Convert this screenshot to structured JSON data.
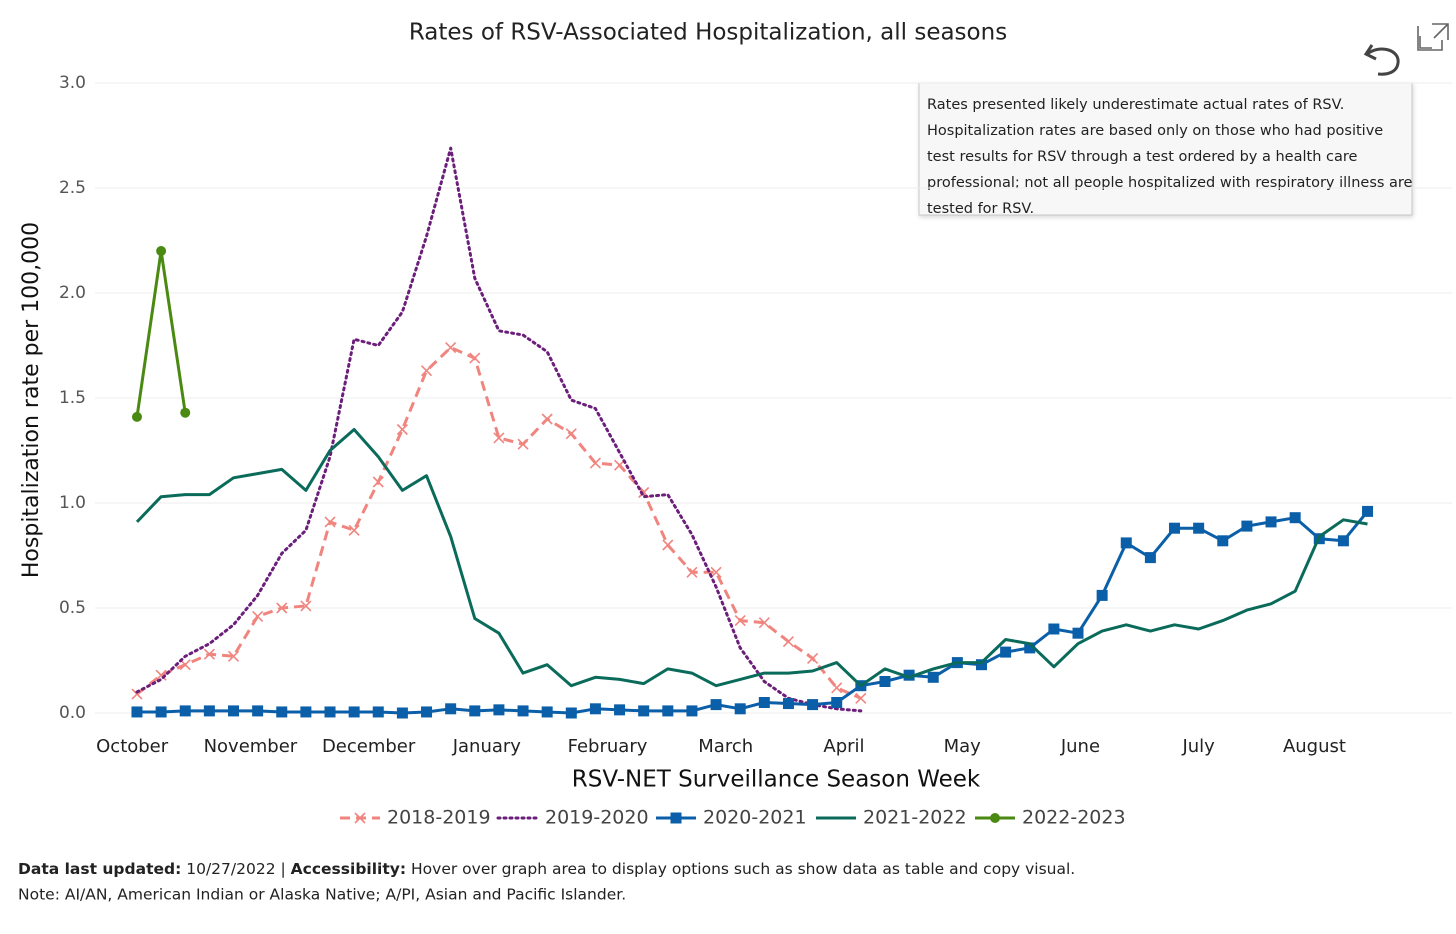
{
  "chart_data": {
    "type": "line",
    "title": "Rates of RSV-Associated Hospitalization, all seasons",
    "y_label": "Hospitalization rate per 100,000",
    "x_label": "RSV-NET Surveillance Season Week",
    "note_lines": [
      "Rates presented likely underestimate actual rates of RSV.",
      "Hospitalization rates are based only on those who had positive",
      "test results for RSV through a test ordered by a health care",
      "professional; not all people hospitalized with respiratory illness are",
      "tested for RSV."
    ],
    "x": [
      0,
      1,
      2,
      3,
      4,
      5,
      6,
      7,
      8,
      9,
      10,
      11,
      12,
      13,
      14,
      15,
      16,
      17,
      18,
      19,
      20,
      21,
      22,
      23,
      24,
      25,
      26,
      27,
      28,
      29,
      30,
      31,
      32,
      33,
      34,
      35,
      36,
      37,
      38,
      39,
      40,
      41,
      42,
      43,
      44,
      45,
      46,
      47,
      48,
      49,
      50,
      51
    ],
    "xlim": [
      -1.74,
      54.5
    ],
    "xticks": [
      {
        "value": -0.2,
        "label": "October"
      },
      {
        "value": 4.7,
        "label": "November"
      },
      {
        "value": 9.6,
        "label": "December"
      },
      {
        "value": 14.5,
        "label": "January"
      },
      {
        "value": 19.5,
        "label": "February"
      },
      {
        "value": 24.4,
        "label": "March"
      },
      {
        "value": 29.3,
        "label": "April"
      },
      {
        "value": 34.2,
        "label": "May"
      },
      {
        "value": 39.1,
        "label": "June"
      },
      {
        "value": 44.0,
        "label": "July"
      },
      {
        "value": 48.8,
        "label": "August"
      }
    ],
    "ylim": [
      0,
      3
    ],
    "yticks": [
      {
        "value": 0,
        "label": "0.0"
      },
      0.5,
      {
        "value": 1,
        "label": "1.0"
      },
      1.5,
      {
        "value": 2,
        "label": "2.0"
      },
      2.5,
      {
        "value": 3,
        "label": "3.0"
      }
    ],
    "grid": true,
    "legend": "bottom",
    "series": [
      {
        "name": "2018-2019",
        "color": "#f0857f",
        "dash": "dashed",
        "marker": "x",
        "values": [
          0.09,
          0.18,
          0.23,
          0.28,
          0.27,
          0.46,
          0.5,
          0.51,
          0.91,
          0.87,
          1.1,
          1.35,
          1.63,
          1.74,
          1.69,
          1.31,
          1.28,
          1.4,
          1.33,
          1.19,
          1.18,
          1.05,
          0.8,
          0.67,
          0.67,
          0.44,
          0.43,
          0.34,
          0.26,
          0.12,
          0.07,
          null,
          null,
          null,
          null,
          null,
          null,
          null,
          null,
          null,
          null,
          null,
          null,
          null,
          null,
          null,
          null,
          null,
          null,
          null,
          null,
          null
        ]
      },
      {
        "name": "2019-2020",
        "color": "#6b1f7b",
        "dash": "dotted",
        "marker": "none",
        "values": [
          0.1,
          0.16,
          0.27,
          0.33,
          0.42,
          0.56,
          0.76,
          0.87,
          1.22,
          1.78,
          1.75,
          1.91,
          2.27,
          2.69,
          2.07,
          1.82,
          1.8,
          1.72,
          1.49,
          1.45,
          1.24,
          1.03,
          1.04,
          0.85,
          0.6,
          0.31,
          0.15,
          0.07,
          0.04,
          0.02,
          0.01,
          null,
          null,
          null,
          null,
          null,
          null,
          null,
          null,
          null,
          null,
          null,
          null,
          null,
          null,
          null,
          null,
          null,
          null,
          null,
          null,
          null
        ]
      },
      {
        "name": "2020-2021",
        "color": "#0b5fa8",
        "dash": "solid",
        "marker": "square",
        "values": [
          0.005,
          0.005,
          0.01,
          0.01,
          0.01,
          0.01,
          0.005,
          0.005,
          0.005,
          0.005,
          0.005,
          0.0,
          0.005,
          0.02,
          0.01,
          0.015,
          0.01,
          0.005,
          0.0,
          0.02,
          0.015,
          0.01,
          0.01,
          0.01,
          0.04,
          0.02,
          0.05,
          0.045,
          0.04,
          0.05,
          0.13,
          0.15,
          0.18,
          0.17,
          0.24,
          0.23,
          0.29,
          0.31,
          0.4,
          0.38,
          0.56,
          0.81,
          0.74,
          0.88,
          0.88,
          0.82,
          0.89,
          0.91,
          0.93,
          0.83,
          0.82,
          0.96
        ]
      },
      {
        "name": "2021-2022",
        "color": "#0b6b5b",
        "dash": "solid",
        "marker": "none",
        "values": [
          0.91,
          1.03,
          1.04,
          1.04,
          1.12,
          1.14,
          1.16,
          1.06,
          1.25,
          1.35,
          1.22,
          1.06,
          1.13,
          0.84,
          0.45,
          0.38,
          0.19,
          0.23,
          0.13,
          0.17,
          0.16,
          0.14,
          0.21,
          0.19,
          0.13,
          0.16,
          0.19,
          0.19,
          0.2,
          0.24,
          0.13,
          0.21,
          0.17,
          0.21,
          0.24,
          0.24,
          0.35,
          0.33,
          0.22,
          0.33,
          0.39,
          0.42,
          0.39,
          0.42,
          0.4,
          0.44,
          0.49,
          0.52,
          0.58,
          0.84,
          0.92,
          0.9
        ]
      },
      {
        "name": "2022-2023",
        "color": "#4a8a12",
        "dash": "solid",
        "marker": "circle",
        "values": [
          1.41,
          2.2,
          1.43,
          null,
          null,
          null,
          null,
          null,
          null,
          null,
          null,
          null,
          null,
          null,
          null,
          null,
          null,
          null,
          null,
          null,
          null,
          null,
          null,
          null,
          null,
          null,
          null,
          null,
          null,
          null,
          null,
          null,
          null,
          null,
          null,
          null,
          null,
          null,
          null,
          null,
          null,
          null,
          null,
          null,
          null,
          null,
          null,
          null,
          null,
          null,
          null,
          null
        ]
      }
    ]
  },
  "footer": {
    "updated_label": "Data last updated:",
    "updated_value": "10/27/2022 |",
    "accessibility_label": "Accessibility:",
    "accessibility_text": "Hover over graph area to display options such as show data as table and copy visual.",
    "note": "Note: AI/AN, American Indian or Alaska Native; A/PI, Asian and Pacific Islander."
  }
}
